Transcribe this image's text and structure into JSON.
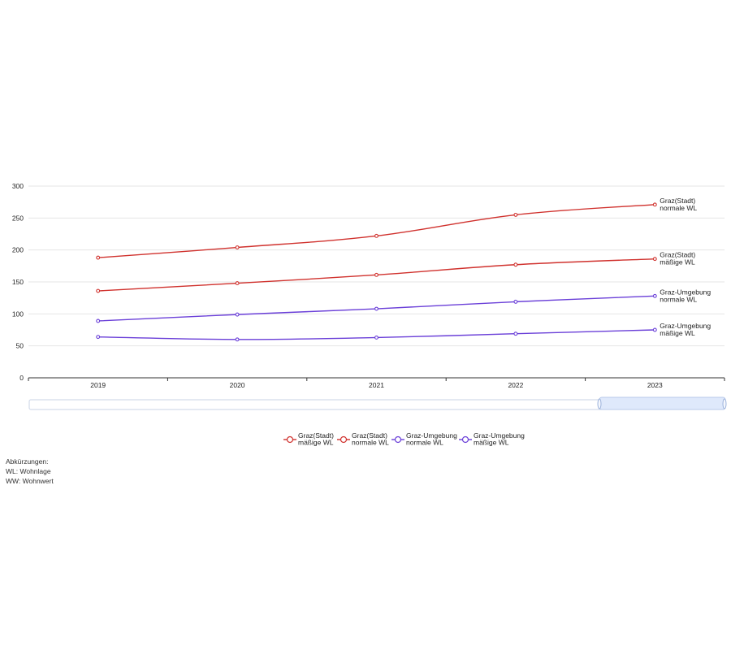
{
  "chart_data": {
    "type": "line",
    "categories": [
      "2019",
      "2020",
      "2021",
      "2022",
      "2023"
    ],
    "ylim": [
      0,
      300
    ],
    "yticks": [
      "0",
      "50",
      "100",
      "150",
      "200",
      "250",
      "300"
    ],
    "grid": true,
    "legend_position": "bottom",
    "series": [
      {
        "name": "Graz(Stadt) mäßige WL",
        "label_lines": [
          "Graz(Stadt)",
          "mäßige WL"
        ],
        "color": "#d0312d",
        "values": [
          136,
          148,
          161,
          177,
          186
        ]
      },
      {
        "name": "Graz(Stadt) normale WL",
        "label_lines": [
          "Graz(Stadt)",
          "normale WL"
        ],
        "color": "#d0312d",
        "values": [
          188,
          204,
          222,
          255,
          271
        ]
      },
      {
        "name": "Graz-Umgebung normale WL",
        "label_lines": [
          "Graz-Umgebung",
          "normale WL"
        ],
        "color": "#6a3fd8",
        "values": [
          89,
          99,
          108,
          119,
          128
        ]
      },
      {
        "name": "Graz-Umgebung mäßige WL",
        "label_lines": [
          "Graz-Umgebung",
          "mäßige WL"
        ],
        "color": "#6a3fd8",
        "values": [
          64,
          60,
          63,
          69,
          75
        ]
      }
    ]
  },
  "notes": {
    "heading": "Abkürzungen:",
    "lines": [
      "WL: Wohnlage",
      "WW: Wohnwert"
    ]
  }
}
